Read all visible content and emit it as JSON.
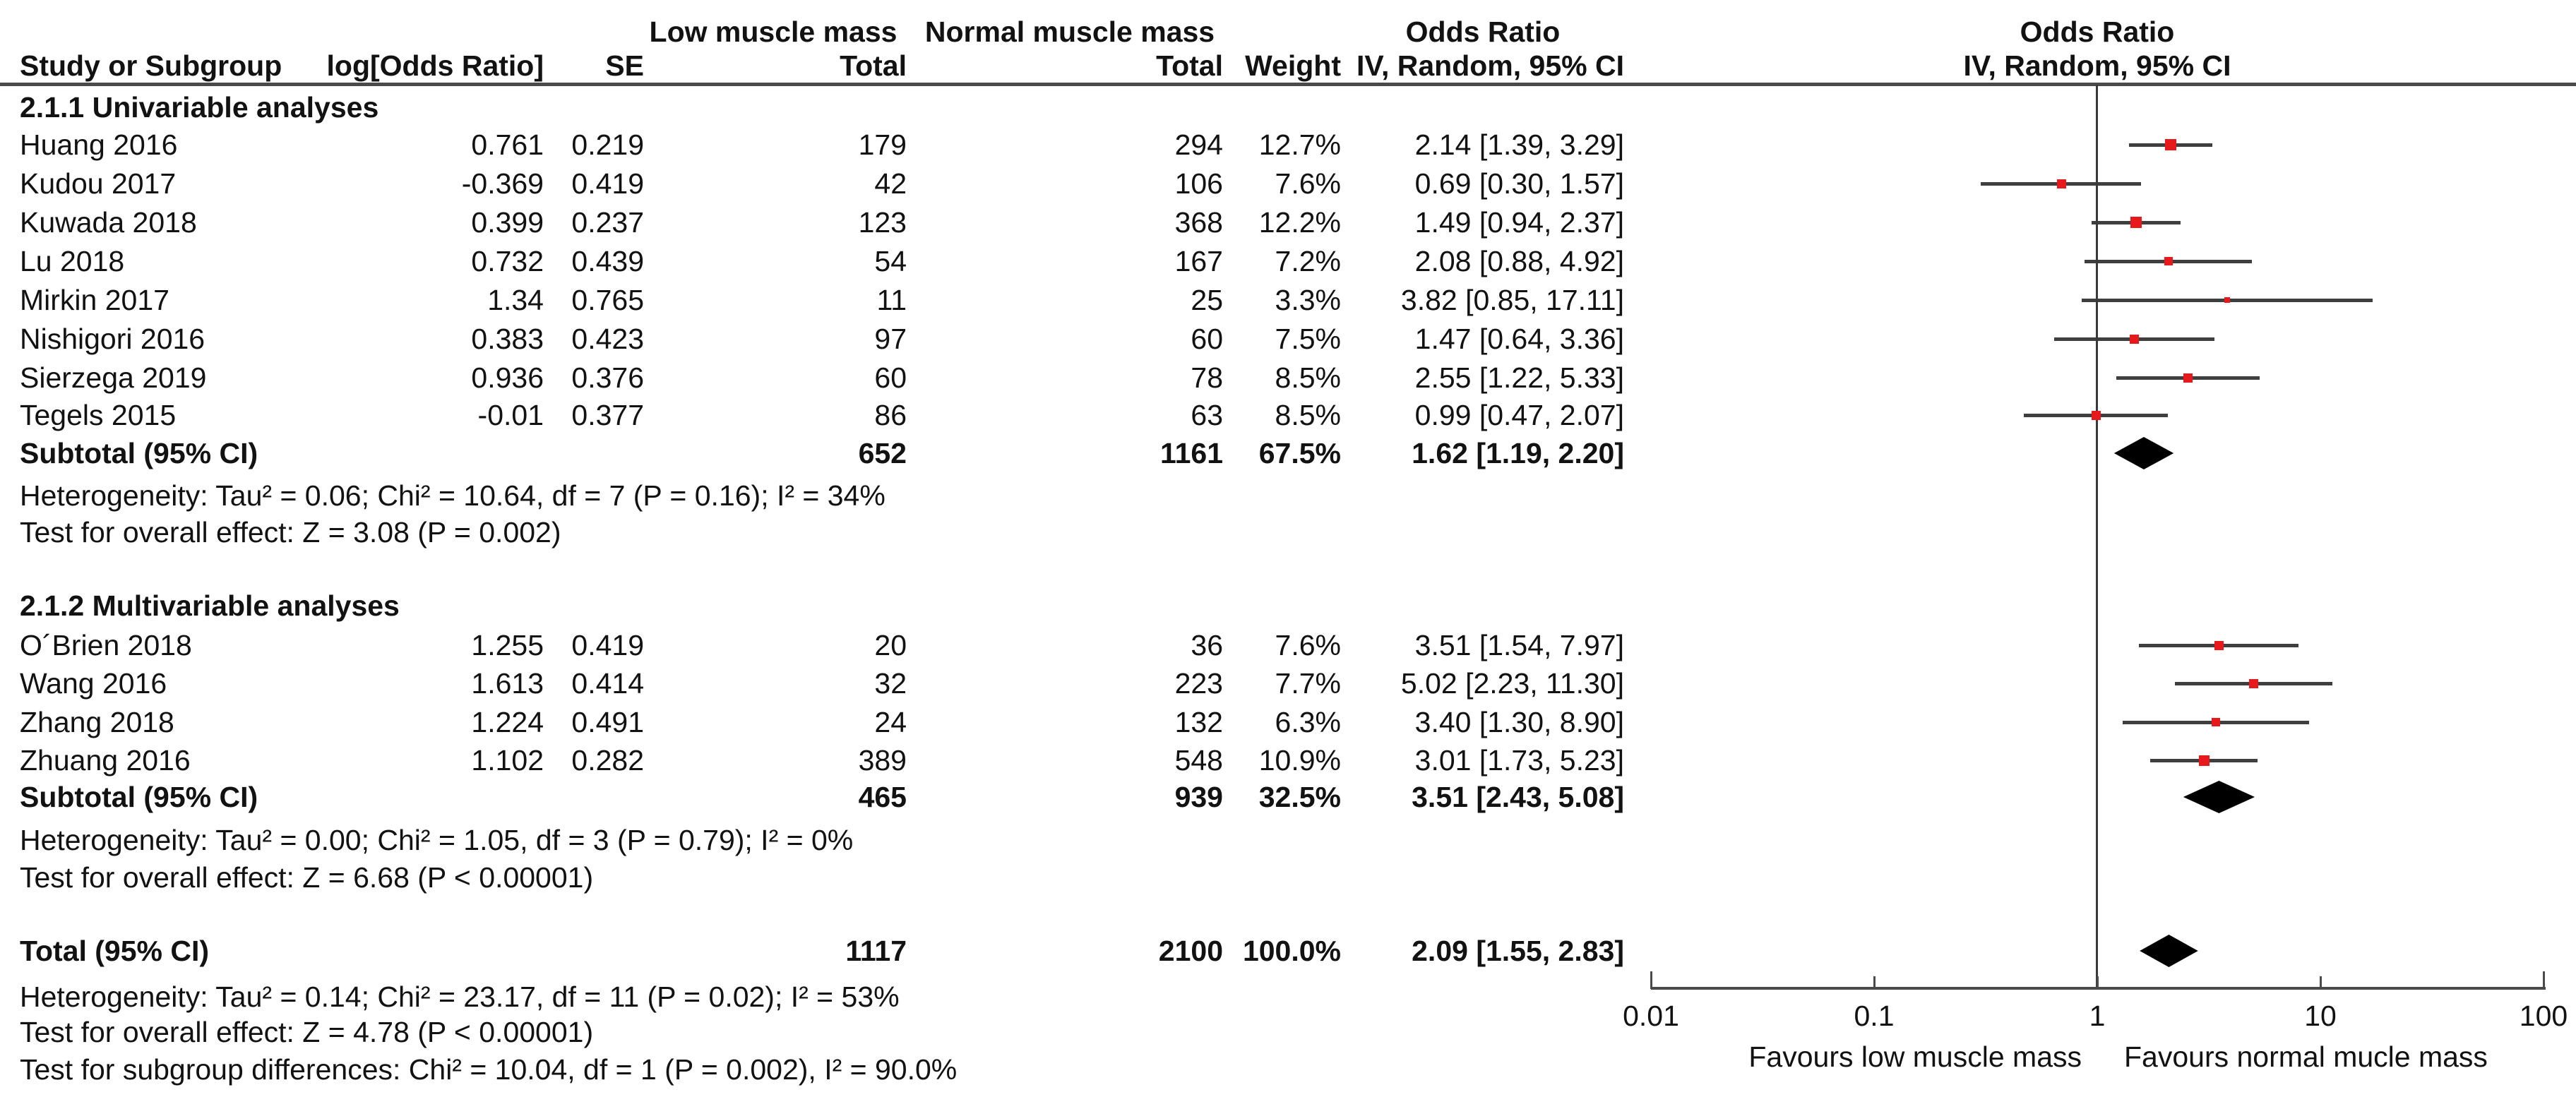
{
  "page": {
    "background": "#ffffff"
  },
  "colors": {
    "marker": "#e8191d",
    "ci_line": "#3f3f3f",
    "diamond": "#000000",
    "axis": "#4a4a4a",
    "text": "#121212"
  },
  "header": {
    "group1": "Low muscle mass",
    "group2": "Normal muscle mass",
    "or_label": "Odds Ratio",
    "study": "Study or Subgroup",
    "log_or": "log[Odds Ratio]",
    "se": "SE",
    "total": "Total",
    "weight": "Weight",
    "method": "IV, Random, 95% CI"
  },
  "chart_data": {
    "type": "forest",
    "effect_measure": "Odds Ratio",
    "model": "IV, Random, 95% CI",
    "x_scale": "log10",
    "x_range": [
      0.01,
      100
    ],
    "x_ticks": [
      "0.01",
      "0.1",
      "1",
      "10",
      "100"
    ],
    "favours_left": "Favours low muscle mass",
    "favours_right": "Favours normal mucle mass",
    "groups": [
      {
        "heading": "2.1.1 Univariable analyses",
        "studies": [
          {
            "study": "Huang 2016",
            "log_or": "0.761",
            "se": "0.219",
            "total1": "179",
            "total2": "294",
            "weight": "12.7%",
            "ci": "2.14 [1.39, 3.29]",
            "or": 2.14,
            "lo": 1.39,
            "hi": 3.29
          },
          {
            "study": "Kudou 2017",
            "log_or": "-0.369",
            "se": "0.419",
            "total1": "42",
            "total2": "106",
            "weight": "7.6%",
            "ci": "0.69 [0.30, 1.57]",
            "or": 0.69,
            "lo": 0.3,
            "hi": 1.57
          },
          {
            "study": "Kuwada 2018",
            "log_or": "0.399",
            "se": "0.237",
            "total1": "123",
            "total2": "368",
            "weight": "12.2%",
            "ci": "1.49 [0.94, 2.37]",
            "or": 1.49,
            "lo": 0.94,
            "hi": 2.37
          },
          {
            "study": "Lu 2018",
            "log_or": "0.732",
            "se": "0.439",
            "total1": "54",
            "total2": "167",
            "weight": "7.2%",
            "ci": "2.08 [0.88, 4.92]",
            "or": 2.08,
            "lo": 0.88,
            "hi": 4.92
          },
          {
            "study": "Mirkin 2017",
            "log_or": "1.34",
            "se": "0.765",
            "total1": "11",
            "total2": "25",
            "weight": "3.3%",
            "ci": "3.82 [0.85, 17.11]",
            "or": 3.82,
            "lo": 0.85,
            "hi": 17.11
          },
          {
            "study": "Nishigori 2016",
            "log_or": "0.383",
            "se": "0.423",
            "total1": "97",
            "total2": "60",
            "weight": "7.5%",
            "ci": "1.47 [0.64, 3.36]",
            "or": 1.47,
            "lo": 0.64,
            "hi": 3.36
          },
          {
            "study": "Sierzega 2019",
            "log_or": "0.936",
            "se": "0.376",
            "total1": "60",
            "total2": "78",
            "weight": "8.5%",
            "ci": "2.55 [1.22, 5.33]",
            "or": 2.55,
            "lo": 1.22,
            "hi": 5.33
          },
          {
            "study": "Tegels 2015",
            "log_or": "-0.01",
            "se": "0.377",
            "total1": "86",
            "total2": "63",
            "weight": "8.5%",
            "ci": "0.99 [0.47, 2.07]",
            "or": 0.99,
            "lo": 0.47,
            "hi": 2.07
          }
        ],
        "subtotal": {
          "label": "Subtotal (95% CI)",
          "total1": "652",
          "total2": "1161",
          "weight": "67.5%",
          "ci": "1.62 [1.19, 2.20]",
          "or": 1.62,
          "lo": 1.19,
          "hi": 2.2
        },
        "heterogeneity": "Heterogeneity: Tau² = 0.06; Chi² = 10.64, df = 7 (P = 0.16); I² = 34%",
        "overall_effect": "Test for overall effect: Z = 3.08 (P = 0.002)"
      },
      {
        "heading": "2.1.2 Multivariable analyses",
        "studies": [
          {
            "study": "O´Brien 2018",
            "log_or": "1.255",
            "se": "0.419",
            "total1": "20",
            "total2": "36",
            "weight": "7.6%",
            "ci": "3.51 [1.54, 7.97]",
            "or": 3.51,
            "lo": 1.54,
            "hi": 7.97
          },
          {
            "study": "Wang 2016",
            "log_or": "1.613",
            "se": "0.414",
            "total1": "32",
            "total2": "223",
            "weight": "7.7%",
            "ci": "5.02 [2.23, 11.30]",
            "or": 5.02,
            "lo": 2.23,
            "hi": 11.3
          },
          {
            "study": "Zhang 2018",
            "log_or": "1.224",
            "se": "0.491",
            "total1": "24",
            "total2": "132",
            "weight": "6.3%",
            "ci": "3.40 [1.30, 8.90]",
            "or": 3.4,
            "lo": 1.3,
            "hi": 8.9
          },
          {
            "study": "Zhuang 2016",
            "log_or": "1.102",
            "se": "0.282",
            "total1": "389",
            "total2": "548",
            "weight": "10.9%",
            "ci": "3.01 [1.73, 5.23]",
            "or": 3.01,
            "lo": 1.73,
            "hi": 5.23
          }
        ],
        "subtotal": {
          "label": "Subtotal (95% CI)",
          "total1": "465",
          "total2": "939",
          "weight": "32.5%",
          "ci": "3.51 [2.43, 5.08]",
          "or": 3.51,
          "lo": 2.43,
          "hi": 5.08
        },
        "heterogeneity": "Heterogeneity: Tau² = 0.00; Chi² = 1.05, df = 3 (P = 0.79); I² = 0%",
        "overall_effect": "Test for overall effect: Z = 6.68 (P < 0.00001)"
      }
    ],
    "total": {
      "label": "Total (95% CI)",
      "total1": "1117",
      "total2": "2100",
      "weight": "100.0%",
      "ci": "2.09 [1.55, 2.83]",
      "or": 2.09,
      "lo": 1.55,
      "hi": 2.83,
      "heterogeneity": "Heterogeneity: Tau² = 0.14; Chi² = 23.17, df = 11 (P = 0.02); I² = 53%",
      "overall_effect": "Test for overall effect: Z = 4.78 (P < 0.00001)",
      "subgroup_diff": "Test for subgroup differences: Chi² = 10.04, df = 1 (P = 0.002), I² = 90.0%"
    }
  }
}
